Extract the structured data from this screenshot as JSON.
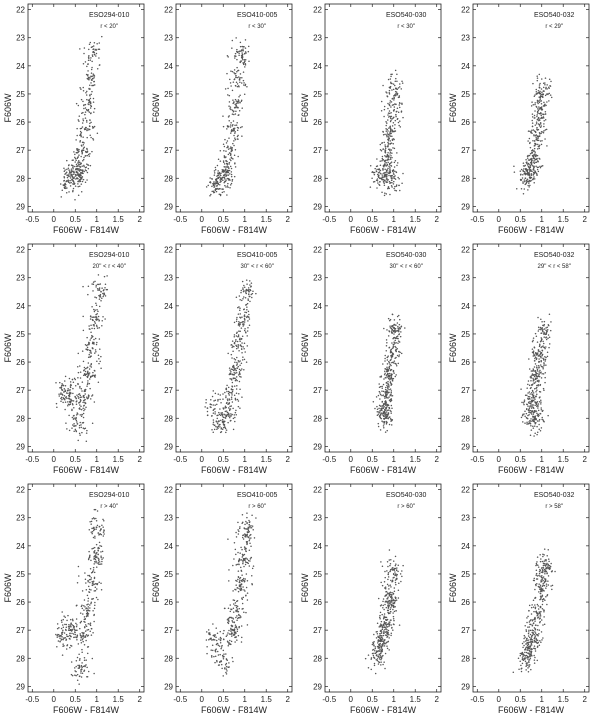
{
  "chart_data": [
    {
      "type": "scatter",
      "title": "ESO294-010",
      "annotation": "r < 20\"",
      "xlabel": "F606W - F814W",
      "ylabel": "F606W",
      "xlim": [
        -0.6,
        2.1
      ],
      "ylim": [
        29.2,
        21.8
      ],
      "xticks": [
        "-0.5",
        "0",
        "0.5",
        "1",
        "1.5",
        "2"
      ],
      "yticks": [
        "22",
        "23",
        "24",
        "25",
        "26",
        "27",
        "28",
        "29"
      ],
      "series": [
        {
          "values": [
            [
              0.95,
              23.6
            ],
            [
              0.88,
              24.5
            ],
            [
              0.82,
              25.3
            ],
            [
              0.75,
              26.2
            ],
            [
              0.68,
              27.0
            ],
            [
              0.62,
              27.6
            ],
            [
              0.55,
              28.0
            ],
            [
              0.4,
              27.8
            ],
            [
              0.3,
              28.1
            ]
          ]
        }
      ]
    },
    {
      "type": "scatter",
      "title": "ESO410-005",
      "annotation": "r < 30\"",
      "xlabel": "F606W - F814W",
      "ylabel": "F606W",
      "xlim": [
        -0.6,
        2.1
      ],
      "ylim": [
        29.2,
        21.8
      ],
      "xticks": [
        "-0.5",
        "0",
        "0.5",
        "1",
        "1.5",
        "2"
      ],
      "yticks": [
        "22",
        "23",
        "24",
        "25",
        "26",
        "27",
        "28",
        "29"
      ],
      "series": [
        {
          "values": [
            [
              0.95,
              23.6
            ],
            [
              0.88,
              24.5
            ],
            [
              0.8,
              25.4
            ],
            [
              0.72,
              26.3
            ],
            [
              0.65,
              27.1
            ],
            [
              0.58,
              27.8
            ],
            [
              0.45,
              28.0
            ],
            [
              0.3,
              28.2
            ]
          ]
        }
      ]
    },
    {
      "type": "scatter",
      "title": "ESO540-030",
      "annotation": "r < 30\"",
      "xlabel": "F606W - F814W",
      "ylabel": "F606W",
      "xlim": [
        -0.6,
        2.1
      ],
      "ylim": [
        29.2,
        21.8
      ],
      "xticks": [
        "-0.5",
        "0",
        "0.5",
        "1",
        "1.5",
        "2"
      ],
      "yticks": [
        "22",
        "23",
        "24",
        "25",
        "26",
        "27",
        "28",
        "29"
      ],
      "series": [
        {
          "values": [
            [
              1.05,
              24.8
            ],
            [
              1.0,
              25.6
            ],
            [
              0.92,
              26.4
            ],
            [
              0.85,
              27.2
            ],
            [
              0.75,
              27.7
            ],
            [
              0.65,
              27.9
            ],
            [
              0.95,
              28.0
            ]
          ]
        }
      ]
    },
    {
      "type": "scatter",
      "title": "ESO540-032",
      "annotation": "r < 29\"",
      "xlabel": "F606W - F814W",
      "ylabel": "F606W",
      "xlim": [
        -0.6,
        2.1
      ],
      "ylim": [
        29.2,
        21.8
      ],
      "xticks": [
        "-0.5",
        "0",
        "0.5",
        "1",
        "1.5",
        "2"
      ],
      "yticks": [
        "22",
        "23",
        "24",
        "25",
        "26",
        "27",
        "28",
        "29"
      ],
      "series": [
        {
          "values": [
            [
              1.05,
              24.9
            ],
            [
              0.98,
              25.7
            ],
            [
              0.9,
              26.5
            ],
            [
              0.82,
              27.2
            ],
            [
              0.72,
              27.7
            ],
            [
              0.62,
              28.0
            ]
          ]
        }
      ]
    },
    {
      "type": "scatter",
      "title": "ESO294-010",
      "annotation": "20\" < r < 40\"",
      "xlabel": "F606W - F814W",
      "ylabel": "F606W",
      "xlim": [
        -0.6,
        2.1
      ],
      "ylim": [
        29.2,
        21.8
      ],
      "xticks": [
        "-0.5",
        "0",
        "0.5",
        "1",
        "1.5",
        "2"
      ],
      "yticks": [
        "22",
        "23",
        "24",
        "25",
        "26",
        "27",
        "28",
        "29"
      ],
      "series": [
        {
          "values": [
            [
              1.1,
              23.5
            ],
            [
              1.0,
              24.5
            ],
            [
              0.9,
              25.5
            ],
            [
              0.8,
              26.4
            ],
            [
              0.7,
              27.2
            ],
            [
              0.2,
              27.0
            ],
            [
              0.35,
              27.2
            ],
            [
              0.55,
              28.2
            ]
          ]
        }
      ]
    },
    {
      "type": "scatter",
      "title": "ESO410-005",
      "annotation": "30\" < r < 60\"",
      "xlabel": "F606W - F814W",
      "ylabel": "F606W",
      "xlim": [
        -0.6,
        2.1
      ],
      "ylim": [
        29.2,
        21.8
      ],
      "xticks": [
        "-0.5",
        "0",
        "0.5",
        "1",
        "1.5",
        "2"
      ],
      "yticks": [
        "22",
        "23",
        "24",
        "25",
        "26",
        "27",
        "28",
        "29"
      ],
      "series": [
        {
          "values": [
            [
              1.1,
              23.5
            ],
            [
              1.0,
              24.5
            ],
            [
              0.9,
              25.4
            ],
            [
              0.8,
              26.3
            ],
            [
              0.7,
              27.1
            ],
            [
              0.6,
              27.8
            ],
            [
              0.2,
              27.5
            ],
            [
              0.4,
              28.1
            ]
          ]
        }
      ]
    },
    {
      "type": "scatter",
      "title": "ESO540-030",
      "annotation": "30\" < r < 60\"",
      "xlabel": "F606W - F814W",
      "ylabel": "F606W",
      "xlim": [
        -0.6,
        2.1
      ],
      "ylim": [
        29.2,
        21.8
      ],
      "xticks": [
        "-0.5",
        "0",
        "0.5",
        "1",
        "1.5",
        "2"
      ],
      "yticks": [
        "22",
        "23",
        "24",
        "25",
        "26",
        "27",
        "28",
        "29"
      ],
      "series": [
        {
          "values": [
            [
              1.05,
              24.9
            ],
            [
              0.98,
              25.7
            ],
            [
              0.9,
              26.5
            ],
            [
              0.82,
              27.2
            ],
            [
              0.72,
              27.7
            ],
            [
              0.8,
              28.0
            ]
          ]
        }
      ]
    },
    {
      "type": "scatter",
      "title": "ESO540-032",
      "annotation": "29\" < r < 58\"",
      "xlabel": "F606W - F814W",
      "ylabel": "F606W",
      "xlim": [
        -0.6,
        2.1
      ],
      "ylim": [
        29.2,
        21.8
      ],
      "xticks": [
        "-0.5",
        "0",
        "0.5",
        "1",
        "1.5",
        "2"
      ],
      "yticks": [
        "22",
        "23",
        "24",
        "25",
        "26",
        "27",
        "28",
        "29"
      ],
      "series": [
        {
          "values": [
            [
              1.05,
              25.0
            ],
            [
              0.97,
              25.8
            ],
            [
              0.88,
              26.5
            ],
            [
              0.8,
              27.2
            ],
            [
              0.7,
              27.7
            ],
            [
              0.85,
              28.0
            ]
          ]
        }
      ]
    },
    {
      "type": "scatter",
      "title": "ESO294-010",
      "annotation": "r > 40\"",
      "xlabel": "F606W - F814W",
      "ylabel": "F606W",
      "xlim": [
        -0.6,
        2.1
      ],
      "ylim": [
        29.2,
        21.8
      ],
      "xticks": [
        "-0.5",
        "0",
        "0.5",
        "1",
        "1.5",
        "2"
      ],
      "yticks": [
        "22",
        "23",
        "24",
        "25",
        "26",
        "27",
        "28",
        "29"
      ],
      "series": [
        {
          "values": [
            [
              1.1,
              23.4
            ],
            [
              1.0,
              24.4
            ],
            [
              0.9,
              25.4
            ],
            [
              0.8,
              26.3
            ],
            [
              0.7,
              27.1
            ],
            [
              0.15,
              27.2
            ],
            [
              0.35,
              27.0
            ],
            [
              0.6,
              28.3
            ]
          ]
        }
      ]
    },
    {
      "type": "scatter",
      "title": "ESO410-005",
      "annotation": "r > 60\"",
      "xlabel": "F606W - F814W",
      "ylabel": "F606W",
      "xlim": [
        -0.6,
        2.1
      ],
      "ylim": [
        29.2,
        21.8
      ],
      "xticks": [
        "-0.5",
        "0",
        "0.5",
        "1",
        "1.5",
        "2"
      ],
      "yticks": [
        "22",
        "23",
        "24",
        "25",
        "26",
        "27",
        "28",
        "29"
      ],
      "series": [
        {
          "values": [
            [
              1.1,
              23.5
            ],
            [
              1.0,
              24.5
            ],
            [
              0.9,
              25.4
            ],
            [
              0.8,
              26.3
            ],
            [
              0.7,
              27.1
            ],
            [
              0.2,
              27.3
            ],
            [
              0.45,
              28.1
            ]
          ]
        }
      ]
    },
    {
      "type": "scatter",
      "title": "ESO540-030",
      "annotation": "r > 60\"",
      "xlabel": "F606W - F814W",
      "ylabel": "F606W",
      "xlim": [
        -0.6,
        2.1
      ],
      "ylim": [
        29.2,
        21.8
      ],
      "xticks": [
        "-0.5",
        "0",
        "0.5",
        "1",
        "1.5",
        "2"
      ],
      "yticks": [
        "22",
        "23",
        "24",
        "25",
        "26",
        "27",
        "28",
        "29"
      ],
      "series": [
        {
          "values": [
            [
              1.0,
              25.0
            ],
            [
              0.92,
              26.0
            ],
            [
              0.82,
              26.8
            ],
            [
              0.7,
              27.4
            ],
            [
              0.6,
              27.9
            ]
          ]
        }
      ]
    },
    {
      "type": "scatter",
      "title": "ESO540-032",
      "annotation": "r > 58\"",
      "xlabel": "F606W - F814W",
      "ylabel": "F606W",
      "xlim": [
        -0.6,
        2.1
      ],
      "ylim": [
        29.2,
        21.8
      ],
      "xticks": [
        "-0.5",
        "0",
        "0.5",
        "1",
        "1.5",
        "2"
      ],
      "yticks": [
        "22",
        "23",
        "24",
        "25",
        "26",
        "27",
        "28",
        "29"
      ],
      "series": [
        {
          "values": [
            [
              1.1,
              24.8
            ],
            [
              1.0,
              25.6
            ],
            [
              0.9,
              26.4
            ],
            [
              0.8,
              27.1
            ],
            [
              0.7,
              27.6
            ],
            [
              0.6,
              28.0
            ]
          ]
        }
      ]
    }
  ]
}
